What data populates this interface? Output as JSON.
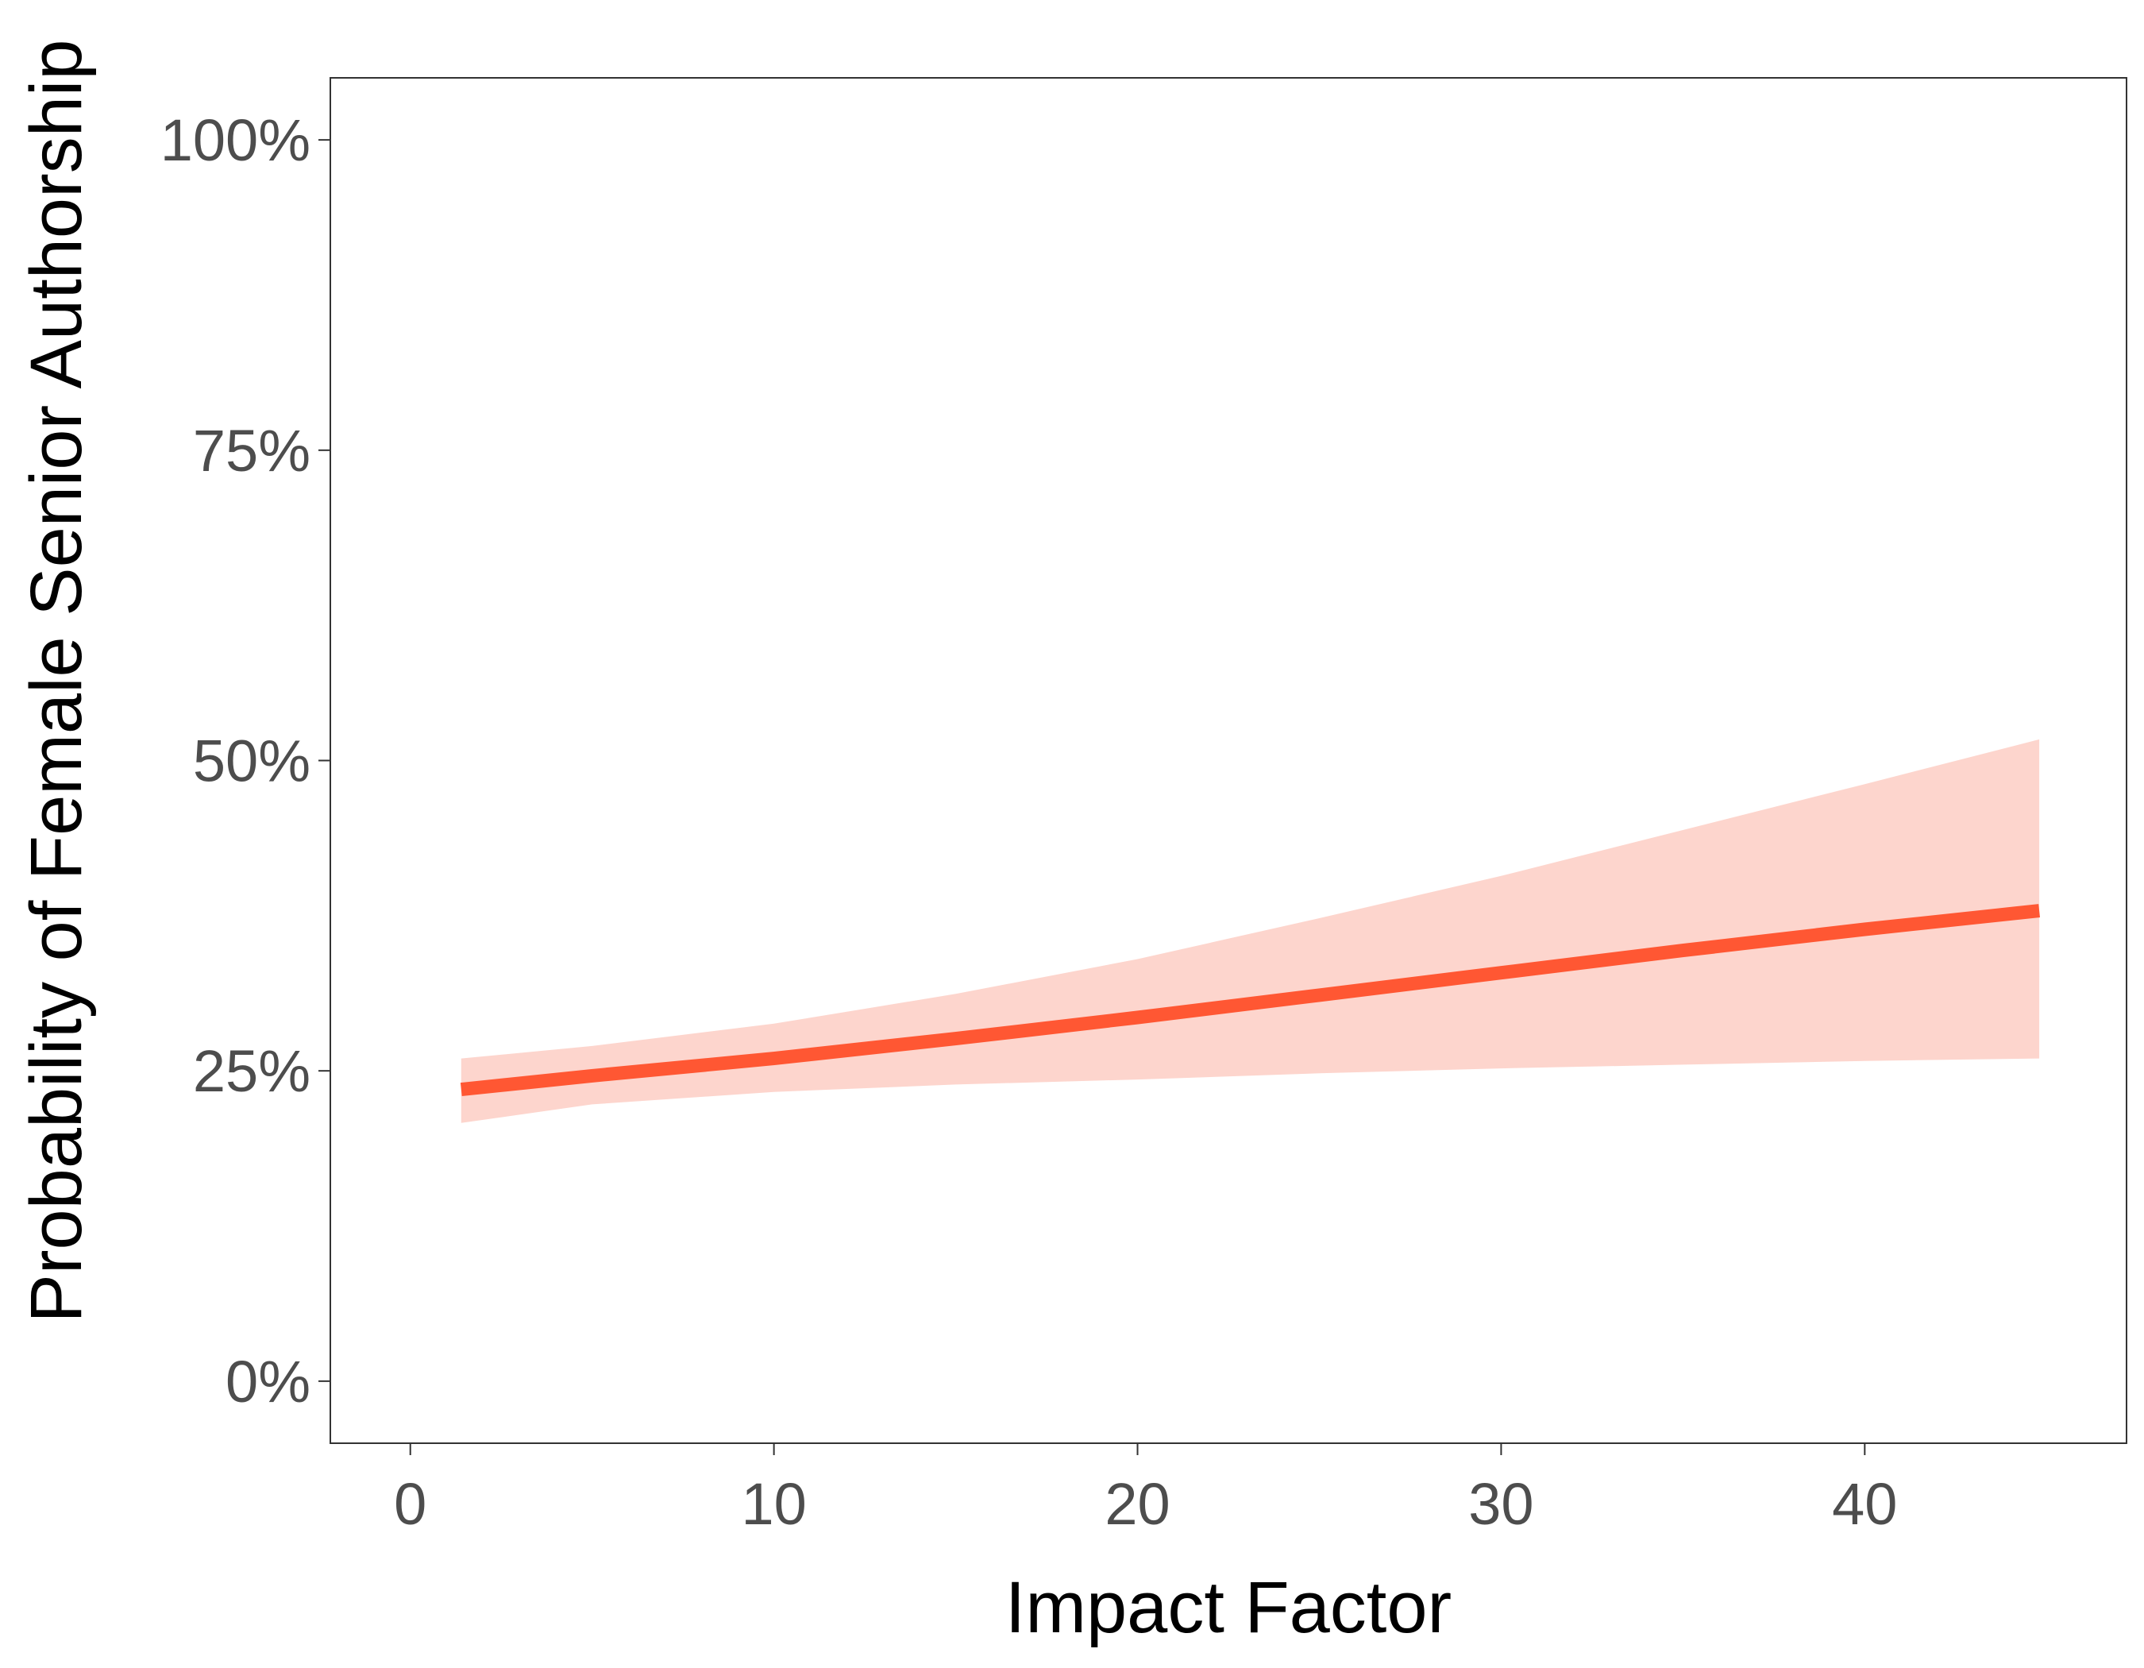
{
  "chart_data": {
    "type": "line",
    "xlabel": "Impact Factor",
    "ylabel": "Probability of Female Senior Authorship",
    "xlim": [
      -2.2,
      47.2
    ],
    "ylim": [
      -5,
      105
    ],
    "x_ticks": [
      0,
      10,
      20,
      30,
      40
    ],
    "y_ticks": [
      0,
      25,
      50,
      75,
      100
    ],
    "y_tick_labels": [
      "0%",
      "25%",
      "50%",
      "75%",
      "100%"
    ],
    "grid": false,
    "series": [
      {
        "type": "line",
        "color": "#ff5733",
        "x": [
          1.4,
          5,
          10,
          15,
          20,
          25,
          30,
          35,
          40,
          44.8
        ],
        "y": [
          23.5,
          24.6,
          26.0,
          27.6,
          29.3,
          31.1,
          32.9,
          34.7,
          36.4,
          37.9
        ]
      },
      {
        "type": "band",
        "color": "#fdd5cd",
        "x": [
          1.4,
          5,
          10,
          15,
          20,
          25,
          30,
          35,
          40,
          44.8
        ],
        "lower": [
          20.8,
          22.3,
          23.3,
          23.9,
          24.3,
          24.8,
          25.2,
          25.5,
          25.8,
          26.0
        ],
        "upper": [
          26.0,
          27.0,
          28.8,
          31.2,
          34.0,
          37.3,
          40.7,
          44.4,
          48.1,
          51.7
        ]
      }
    ]
  }
}
